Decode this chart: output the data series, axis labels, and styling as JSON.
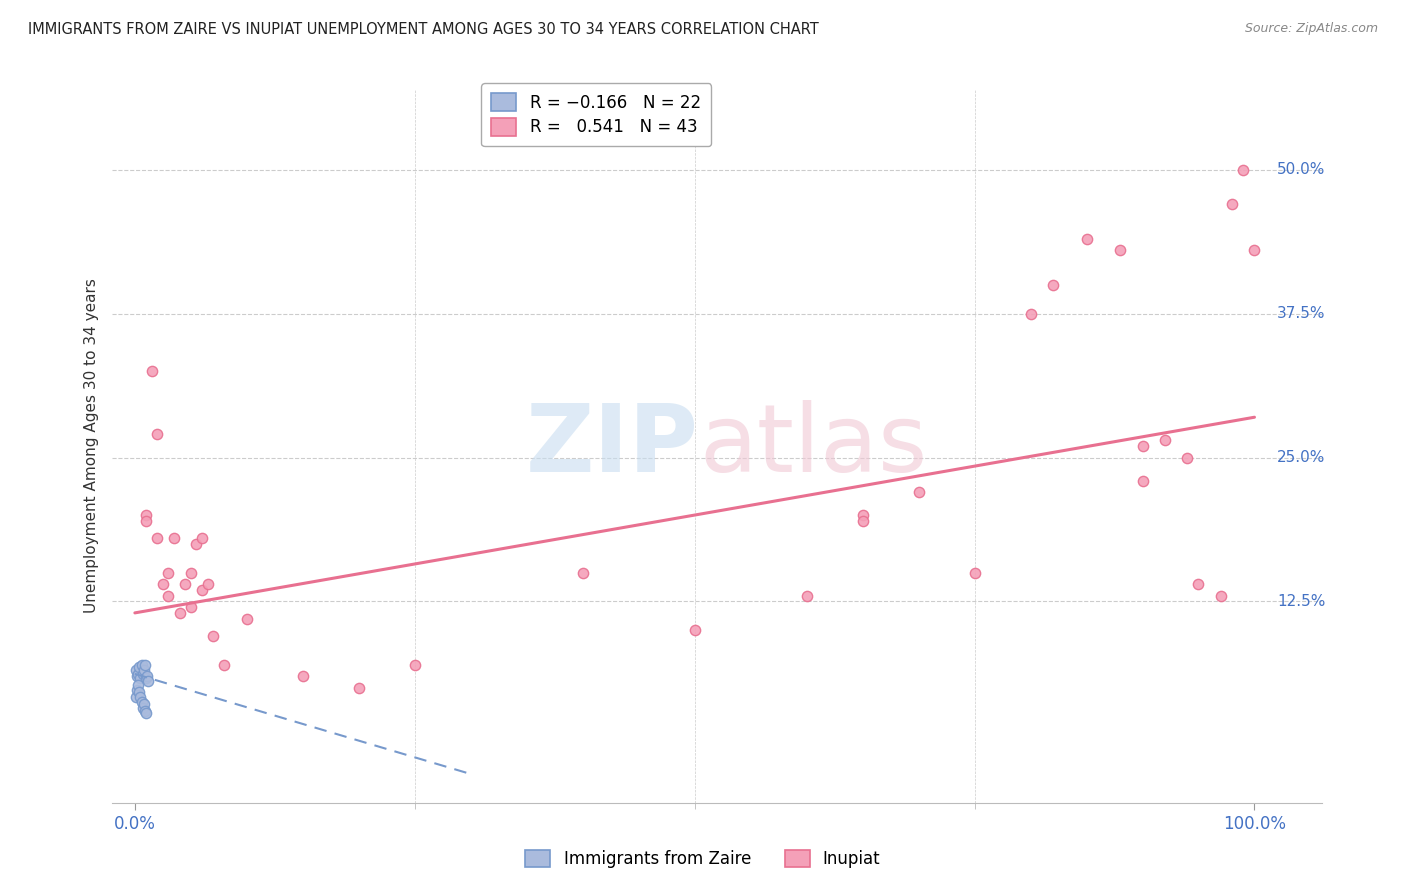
{
  "title": "IMMIGRANTS FROM ZAIRE VS INUPIAT UNEMPLOYMENT AMONG AGES 30 TO 34 YEARS CORRELATION CHART",
  "source": "Source: ZipAtlas.com",
  "ylabel": "Unemployment Among Ages 30 to 34 years",
  "background_color": "#ffffff",
  "grid_color": "#cccccc",
  "blue_color": "#7799cc",
  "pink_color": "#e87090",
  "blue_fill": "#aabbdd",
  "pink_fill": "#f4a0b8",
  "blue_scatter_x": [
    0.001,
    0.002,
    0.003,
    0.004,
    0.005,
    0.006,
    0.007,
    0.008,
    0.009,
    0.01,
    0.011,
    0.012,
    0.001,
    0.002,
    0.003,
    0.004,
    0.005,
    0.006,
    0.007,
    0.008,
    0.009,
    0.01
  ],
  "blue_scatter_y": [
    0.065,
    0.06,
    0.062,
    0.068,
    0.058,
    0.07,
    0.062,
    0.065,
    0.07,
    0.058,
    0.06,
    0.056,
    0.042,
    0.048,
    0.052,
    0.046,
    0.042,
    0.038,
    0.032,
    0.036,
    0.03,
    0.028
  ],
  "pink_scatter_x": [
    0.01,
    0.015,
    0.02,
    0.025,
    0.03,
    0.035,
    0.045,
    0.05,
    0.055,
    0.06,
    0.065,
    0.01,
    0.02,
    0.03,
    0.04,
    0.05,
    0.06,
    0.07,
    0.08,
    0.4,
    0.5,
    0.6,
    0.65,
    0.65,
    0.7,
    0.75,
    0.8,
    0.82,
    0.85,
    0.88,
    0.9,
    0.9,
    0.92,
    0.94,
    0.95,
    0.97,
    0.98,
    0.99,
    1.0,
    0.1,
    0.15,
    0.2,
    0.25
  ],
  "pink_scatter_y": [
    0.2,
    0.325,
    0.18,
    0.14,
    0.15,
    0.18,
    0.14,
    0.15,
    0.175,
    0.135,
    0.14,
    0.195,
    0.27,
    0.13,
    0.115,
    0.12,
    0.18,
    0.095,
    0.07,
    0.15,
    0.1,
    0.13,
    0.2,
    0.195,
    0.22,
    0.15,
    0.375,
    0.4,
    0.44,
    0.43,
    0.26,
    0.23,
    0.265,
    0.25,
    0.14,
    0.13,
    0.47,
    0.5,
    0.43,
    0.11,
    0.06,
    0.05,
    0.07
  ],
  "pink_trend_x": [
    0.0,
    1.0
  ],
  "pink_trend_y": [
    0.115,
    0.285
  ],
  "blue_trend_x": [
    0.0,
    0.3
  ],
  "blue_trend_y": [
    0.062,
    -0.025
  ],
  "marker_size": 55,
  "y_ticks": [
    0.125,
    0.25,
    0.375,
    0.5
  ],
  "y_tick_labels": [
    "12.5%",
    "25.0%",
    "37.5%",
    "50.0%"
  ],
  "x_ticks": [
    0.0,
    1.0
  ],
  "x_tick_labels": [
    "0.0%",
    "100.0%"
  ],
  "ylim": [
    -0.05,
    0.57
  ],
  "xlim": [
    -0.02,
    1.06
  ]
}
